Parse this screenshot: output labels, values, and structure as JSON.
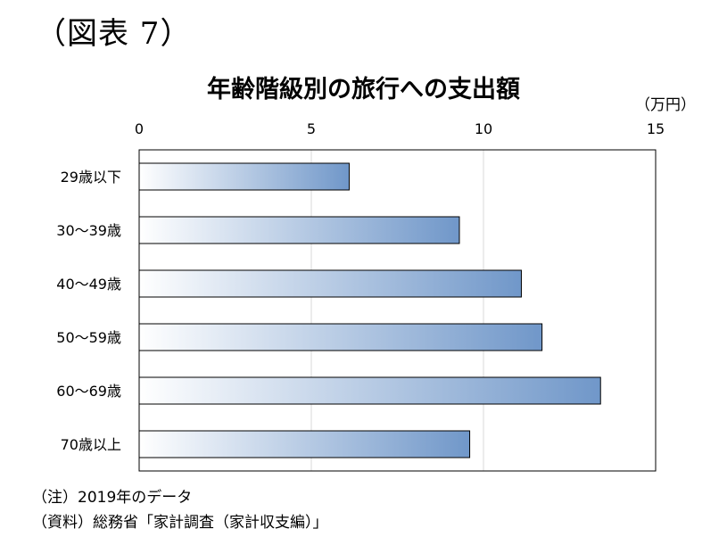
{
  "figure_label": "（図表 7）",
  "notes": {
    "note": "（注）2019年のデータ",
    "source": "（資料）総務省「家計調査（家計収支編）」"
  },
  "chart_data": {
    "type": "bar",
    "orientation": "horizontal",
    "title": "年齢階級別の旅行への支出額",
    "unit_label": "（万円）",
    "categories": [
      "29歳以下",
      "30～39歳",
      "40～49歳",
      "50～59歳",
      "60～69歳",
      "70歳以上"
    ],
    "values": [
      6.1,
      9.3,
      11.1,
      11.7,
      13.4,
      9.6
    ],
    "xlim": [
      0,
      15
    ],
    "xticks": [
      0,
      5,
      10,
      15
    ],
    "x_axis_position": "top",
    "grid": true,
    "bar_gradient": [
      "#ffffff",
      "#7097c9"
    ],
    "bar_border": "#000000"
  }
}
